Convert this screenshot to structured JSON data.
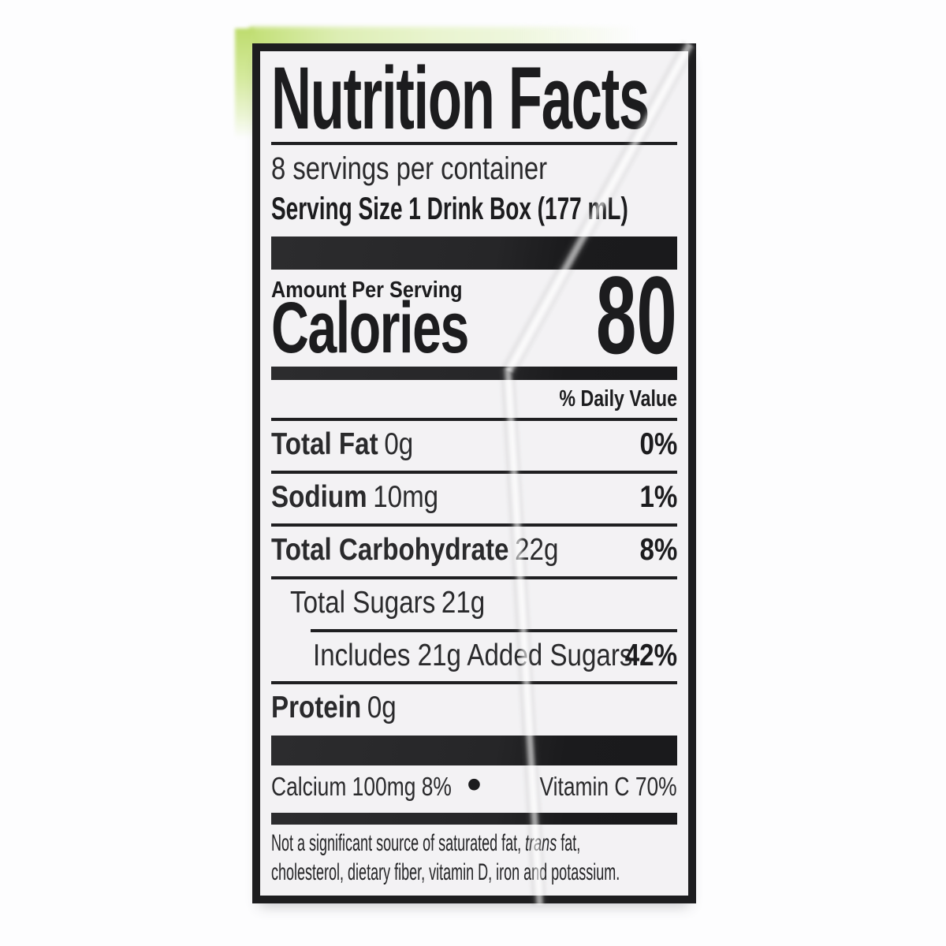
{
  "label": {
    "title": "Nutrition Facts",
    "servings_per_container": "8 servings per container",
    "serving_size": "Serving Size 1 Drink Box (177 mL)",
    "amount_per_serving": "Amount Per Serving",
    "calories_label": "Calories",
    "calories_value": "80",
    "daily_value_header": "% Daily Value",
    "nutrients": [
      {
        "name": "Total Fat",
        "amount": "0g",
        "dv": "0%"
      },
      {
        "name": "Sodium",
        "amount": "10mg",
        "dv": "1%"
      },
      {
        "name": "Total Carbohydrate",
        "amount": "22g",
        "dv": "8%"
      },
      {
        "name": "Total Sugars",
        "amount": "21g",
        "dv": ""
      },
      {
        "name": "Includes 21g Added Sugars",
        "amount": "",
        "dv": "42%"
      },
      {
        "name": "Protein",
        "amount": "0g",
        "dv": ""
      }
    ],
    "minerals": {
      "left": "Calcium 100mg 8%",
      "separator": "•",
      "right": "Vitamin C 70%"
    },
    "footnote": {
      "line1_pre": "Not a significant source of saturated fat, ",
      "line1_italic": "trans",
      "line1_post": " fat,",
      "line2": "cholesterol, dietary fiber, vitamin D, iron and potassium."
    },
    "colors": {
      "ink": "#1d1d1f",
      "label_background": "#f3f2f4",
      "page_background": "#fdfdfe",
      "leaf_green": "#bedc6e"
    }
  }
}
